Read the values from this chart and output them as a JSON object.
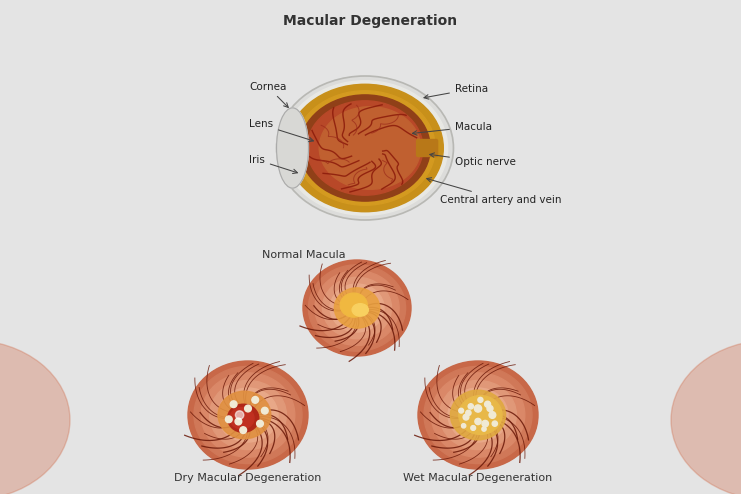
{
  "title": "Macular Degeneration",
  "title_fontsize": 10,
  "title_fontweight": "bold",
  "bg_color": "#e4e4e4",
  "center_color": "#f2f2f2",
  "text_color": "#333333",
  "caption_normal": "Normal Macula",
  "caption_dry": "Dry Macular Degeneration",
  "caption_wet": "Wet Macular Degeneration",
  "sclera_color": "#dcdcda",
  "sclera_rim": "#c0c0bc",
  "limbus_color": "#c8901a",
  "limbus_inner": "#b07010",
  "iris_color": "#a04020",
  "retina_fill": "#b85030",
  "vessel_dark": "#7a1810",
  "retina_bg1": "#d4785a",
  "retina_bg2": "#c86848",
  "retina_bg3": "#e0907a",
  "ring1": "#e09878",
  "ring2": "#d07858",
  "ring3": "#c86848",
  "macula_yellow": "#e8a040",
  "macula_gold": "#d48030",
  "macula_center": "#f0c050",
  "dry_red": "#b83018",
  "dry_yellow": "#e09040",
  "wet_yellow": "#e8b850",
  "spot_color": "#f0ead0",
  "label_fontsize": 7.5,
  "caption_fontsize": 8
}
